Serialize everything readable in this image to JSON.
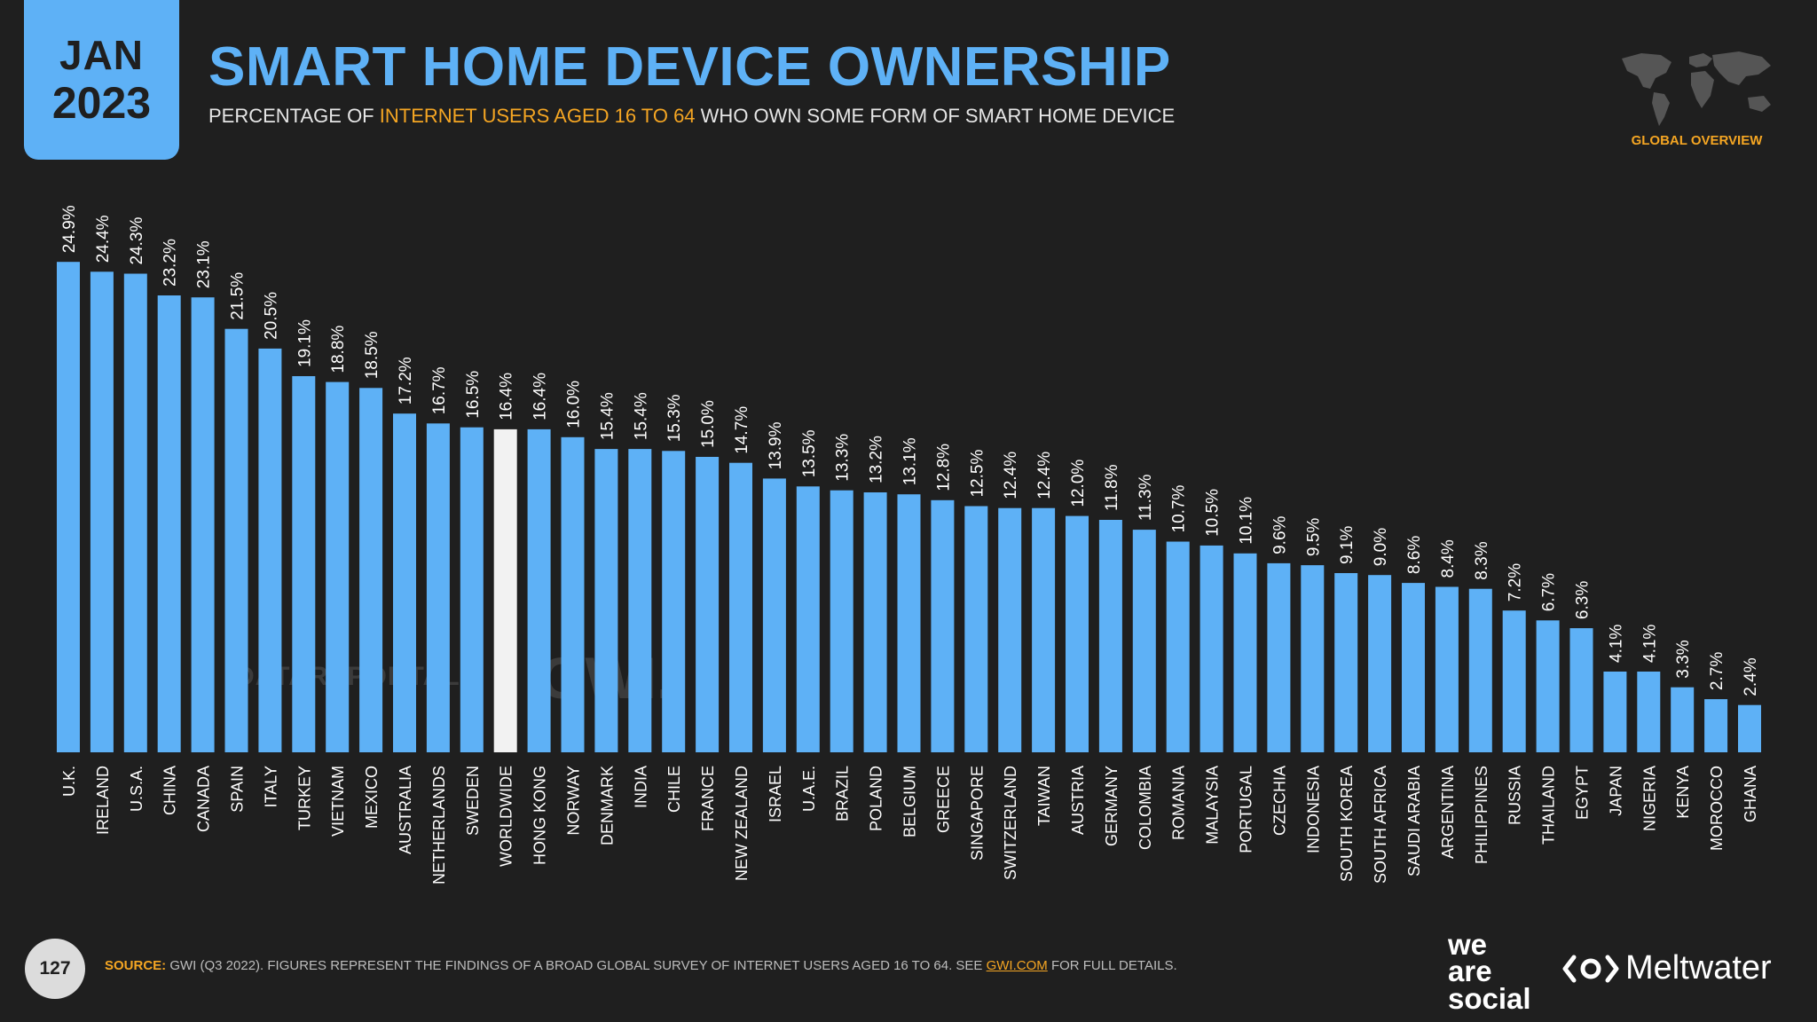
{
  "header": {
    "month": "JAN",
    "year": "2023",
    "title": "SMART HOME DEVICE OWNERSHIP",
    "subtitle_pre": "PERCENTAGE OF",
    "subtitle_highlight": "INTERNET USERS AGED 16 TO 64",
    "subtitle_post": "WHO OWN SOME FORM OF SMART HOME DEVICE",
    "region": "GLOBAL OVERVIEW"
  },
  "watermarks": {
    "datareportal": "DATAREPORTAL",
    "gwi": "GWI."
  },
  "footer": {
    "page_number": "127",
    "source_label": "SOURCE:",
    "source_text": "GWI (Q3 2022). FIGURES REPRESENT THE FINDINGS OF A BROAD GLOBAL SURVEY OF INTERNET USERS AGED 16 TO 64. SEE",
    "source_link": "GWI.COM",
    "source_end": "FOR FULL DETAILS.",
    "brand_1": [
      "we",
      "are",
      "social"
    ],
    "brand_2": "Meltwater"
  },
  "colors": {
    "background": "#1f1f1f",
    "bar": "#5eb1f6",
    "highlight_bar": "#f2f2f2",
    "accent": "#f5a623"
  },
  "chart_data": {
    "type": "bar",
    "title": "SMART HOME DEVICE OWNERSHIP",
    "xlabel": "",
    "ylabel": "",
    "ylim": [
      0,
      25
    ],
    "grid": false,
    "unit": "%",
    "highlight_category": "WORLDWIDE",
    "categories": [
      "U.K.",
      "IRELAND",
      "U.S.A.",
      "CHINA",
      "CANADA",
      "SPAIN",
      "ITALY",
      "TURKEY",
      "VIETNAM",
      "MEXICO",
      "AUSTRALIA",
      "NETHERLANDS",
      "SWEDEN",
      "WORLDWIDE",
      "HONG KONG",
      "NORWAY",
      "DENMARK",
      "INDIA",
      "CHILE",
      "FRANCE",
      "NEW ZEALAND",
      "ISRAEL",
      "U.A.E.",
      "BRAZIL",
      "POLAND",
      "BELGIUM",
      "GREECE",
      "SINGAPORE",
      "SWITZERLAND",
      "TAIWAN",
      "AUSTRIA",
      "GERMANY",
      "COLOMBIA",
      "ROMANIA",
      "MALAYSIA",
      "PORTUGAL",
      "CZECHIA",
      "INDONESIA",
      "SOUTH KOREA",
      "SOUTH AFRICA",
      "SAUDI ARABIA",
      "ARGENTINA",
      "PHILIPPINES",
      "RUSSIA",
      "THAILAND",
      "EGYPT",
      "JAPAN",
      "NIGERIA",
      "KENYA",
      "MOROCCO",
      "GHANA"
    ],
    "values": [
      24.9,
      24.4,
      24.3,
      23.2,
      23.1,
      21.5,
      20.5,
      19.1,
      18.8,
      18.5,
      17.2,
      16.7,
      16.5,
      16.4,
      16.4,
      16.0,
      15.4,
      15.4,
      15.3,
      15.0,
      14.7,
      13.9,
      13.5,
      13.3,
      13.2,
      13.1,
      12.8,
      12.5,
      12.4,
      12.4,
      12.0,
      11.8,
      11.3,
      10.7,
      10.5,
      10.1,
      9.6,
      9.5,
      9.1,
      9.0,
      8.6,
      8.4,
      8.3,
      7.2,
      6.7,
      6.3,
      4.1,
      4.1,
      3.3,
      2.7,
      2.4
    ]
  }
}
